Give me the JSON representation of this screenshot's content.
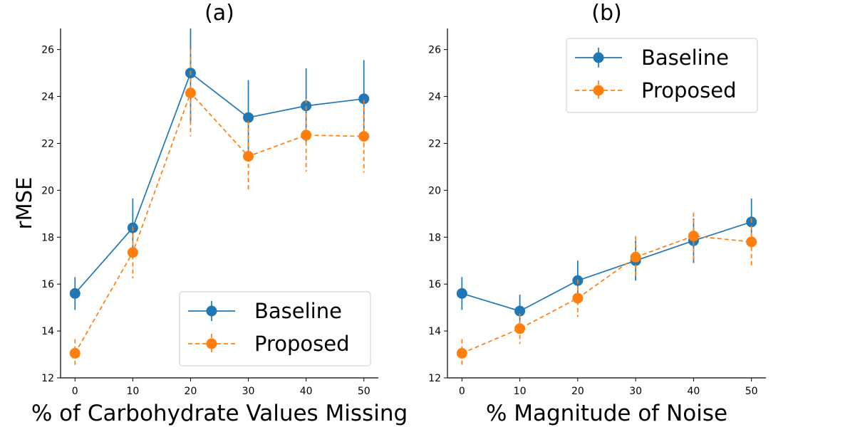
{
  "chart_data": [
    {
      "type": "line",
      "title": "(a)",
      "xlabel": "% of Carbohydrate Values Missing",
      "ylabel": "rMSE",
      "x": [
        0,
        10,
        20,
        30,
        40,
        50
      ],
      "xticks": [
        "0",
        "10",
        "20",
        "30",
        "40",
        "50"
      ],
      "yticks": [
        "12",
        "14",
        "16",
        "18",
        "20",
        "22",
        "24",
        "26"
      ],
      "xlim": [
        -2.5,
        52.5
      ],
      "ylim": [
        12,
        26.9
      ],
      "grid": false,
      "legend_position": "lower-right",
      "series": [
        {
          "name": "Baseline",
          "color": "#1f77b4",
          "linestyle": "solid",
          "values": [
            15.6,
            18.4,
            25.0,
            23.1,
            23.6,
            23.9
          ],
          "errors": [
            0.7,
            1.25,
            2.1,
            1.6,
            1.6,
            1.65
          ]
        },
        {
          "name": "Proposed",
          "color": "#ff7f0e",
          "linestyle": "dashed",
          "values": [
            13.05,
            17.35,
            24.15,
            21.45,
            22.35,
            22.3
          ],
          "errors": [
            0.6,
            1.1,
            1.85,
            1.5,
            1.55,
            1.55
          ]
        }
      ]
    },
    {
      "type": "line",
      "title": "(b)",
      "xlabel": "% Magnitude of Noise",
      "ylabel": "",
      "x": [
        0,
        10,
        20,
        30,
        40,
        50
      ],
      "xticks": [
        "0",
        "10",
        "20",
        "30",
        "40",
        "50"
      ],
      "yticks": [
        "12",
        "14",
        "16",
        "18",
        "20",
        "22",
        "24",
        "26"
      ],
      "xlim": [
        -2.5,
        52.5
      ],
      "ylim": [
        12,
        26.9
      ],
      "grid": false,
      "legend_position": "upper-right",
      "series": [
        {
          "name": "Baseline",
          "color": "#1f77b4",
          "linestyle": "solid",
          "values": [
            15.6,
            14.85,
            16.15,
            17.0,
            17.85,
            18.65
          ],
          "errors": [
            0.7,
            0.7,
            0.85,
            0.85,
            0.95,
            1.0
          ]
        },
        {
          "name": "Proposed",
          "color": "#ff7f0e",
          "linestyle": "dashed",
          "values": [
            13.05,
            14.1,
            15.4,
            17.15,
            18.05,
            17.8
          ],
          "errors": [
            0.6,
            0.65,
            0.8,
            0.9,
            1.0,
            1.0
          ]
        }
      ]
    }
  ]
}
